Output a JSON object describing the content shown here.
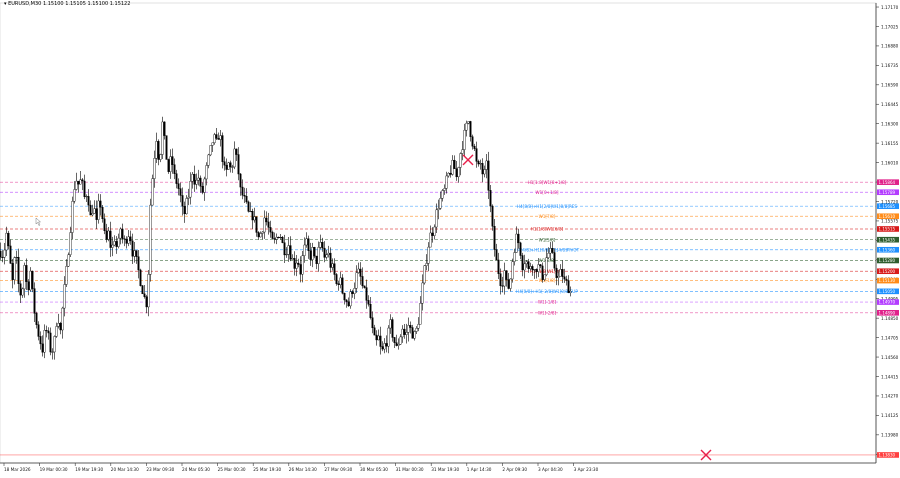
{
  "header": {
    "symbol_icon": "triangle-down-icon",
    "text": "EURUSD,M30  1.15100 1.15105 1.15100 1.15122"
  },
  "colors": {
    "background": "#ffffff",
    "candle": "#000000",
    "grid": "#d9d9d9",
    "axis": "#333333",
    "marker": "#e8204b",
    "price_line": "#ff4040"
  },
  "chart_data": {
    "type": "candlestick",
    "title": "",
    "xlabel": "",
    "ylabel": "",
    "ylim": [
      1.1377,
      1.172
    ],
    "grid": false,
    "y_ticks": [
      "1.17170",
      "1.17025",
      "1.16880",
      "1.16735",
      "1.16590",
      "1.16445",
      "1.16300",
      "1.16155",
      "1.16010",
      "1.15865",
      "1.15720",
      "1.15575",
      "1.15430",
      "1.15285",
      "1.15140",
      "1.14995",
      "1.14850",
      "1.14705",
      "1.14560",
      "1.14415",
      "1.14270",
      "1.14125",
      "1.13980",
      "1.13835"
    ],
    "x_ticks": [
      "18 Mar 2026",
      "19 Mar 00:30",
      "19 Mar 19:30",
      "20 Mar 14:30",
      "23 Mar 09:30",
      "24 Mar 05:30",
      "25 Mar 00:30",
      "25 Mar 19:30",
      "26 Mar 14:30",
      "27 Mar 09:30",
      "30 Mar 05:30",
      "31 Mar 00:30",
      "31 Mar 19:30",
      "1 Apr 14:30",
      "2 Apr 09:30",
      "3 Apr 04:30",
      "3 Apr 23:30"
    ],
    "price_path": [
      [
        0,
        1.1535
      ],
      [
        3,
        1.1532
      ],
      [
        6,
        1.1548
      ],
      [
        9,
        1.153
      ],
      [
        12,
        1.1512
      ],
      [
        15,
        1.1535
      ],
      [
        18,
        1.151
      ],
      [
        21,
        1.15
      ],
      [
        24,
        1.1525
      ],
      [
        27,
        1.1505
      ],
      [
        30,
        1.152
      ],
      [
        33,
        1.1495
      ],
      [
        36,
        1.148
      ],
      [
        39,
        1.147
      ],
      [
        42,
        1.1462
      ],
      [
        45,
        1.1478
      ],
      [
        48,
        1.147
      ],
      [
        51,
        1.1458
      ],
      [
        54,
        1.1468
      ],
      [
        57,
        1.149
      ],
      [
        60,
        1.1475
      ],
      [
        63,
        1.15
      ],
      [
        66,
        1.152
      ],
      [
        69,
        1.1545
      ],
      [
        72,
        1.157
      ],
      [
        75,
        1.159
      ],
      [
        78,
        1.1585
      ],
      [
        81,
        1.1588
      ],
      [
        84,
        1.1575
      ],
      [
        87,
        1.158
      ],
      [
        90,
        1.156
      ],
      [
        93,
        1.157
      ],
      [
        96,
        1.1555
      ],
      [
        99,
        1.1575
      ],
      [
        102,
        1.156
      ],
      [
        105,
        1.154
      ],
      [
        108,
        1.1548
      ],
      [
        111,
        1.1535
      ],
      [
        114,
        1.1545
      ],
      [
        117,
        1.1535
      ],
      [
        120,
        1.1552
      ],
      [
        123,
        1.154
      ],
      [
        126,
        1.1545
      ],
      [
        129,
        1.155
      ],
      [
        132,
        1.1535
      ],
      [
        135,
        1.153
      ],
      [
        138,
        1.152
      ],
      [
        141,
        1.151
      ],
      [
        144,
        1.15
      ],
      [
        147,
        1.1495
      ],
      [
        150,
        1.157
      ],
      [
        153,
        1.16
      ],
      [
        156,
        1.162
      ],
      [
        159,
        1.16
      ],
      [
        162,
        1.163
      ],
      [
        165,
        1.161
      ],
      [
        168,
        1.1595
      ],
      [
        171,
        1.1605
      ],
      [
        174,
        1.159
      ],
      [
        177,
        1.1585
      ],
      [
        180,
        1.1575
      ],
      [
        183,
        1.156
      ],
      [
        186,
        1.157
      ],
      [
        189,
        1.158
      ],
      [
        192,
        1.1595
      ],
      [
        195,
        1.1585
      ],
      [
        198,
        1.159
      ],
      [
        201,
        1.1575
      ],
      [
        204,
        1.1588
      ],
      [
        207,
        1.16
      ],
      [
        210,
        1.161
      ],
      [
        213,
        1.162
      ],
      [
        216,
        1.1615
      ],
      [
        219,
        1.1625
      ],
      [
        222,
        1.1605
      ],
      [
        225,
        1.159
      ],
      [
        228,
        1.16
      ],
      [
        231,
        1.1595
      ],
      [
        234,
        1.161
      ],
      [
        237,
        1.16
      ],
      [
        240,
        1.158
      ],
      [
        243,
        1.1575
      ],
      [
        246,
        1.1568
      ],
      [
        249,
        1.156
      ],
      [
        252,
        1.1562
      ],
      [
        255,
        1.1555
      ],
      [
        258,
        1.1545
      ],
      [
        261,
        1.155
      ],
      [
        264,
        1.156
      ],
      [
        267,
        1.1555
      ],
      [
        270,
        1.1545
      ],
      [
        273,
        1.154
      ],
      [
        276,
        1.1545
      ],
      [
        279,
        1.155
      ],
      [
        282,
        1.154
      ],
      [
        285,
        1.1535
      ],
      [
        288,
        1.154
      ],
      [
        291,
        1.153
      ],
      [
        294,
        1.1525
      ],
      [
        297,
        1.153
      ],
      [
        300,
        1.152
      ],
      [
        303,
        1.1535
      ],
      [
        306,
        1.154
      ],
      [
        309,
        1.153
      ],
      [
        312,
        1.1535
      ],
      [
        315,
        1.1525
      ],
      [
        318,
        1.1535
      ],
      [
        321,
        1.154
      ],
      [
        324,
        1.153
      ],
      [
        327,
        1.1535
      ],
      [
        330,
        1.1525
      ],
      [
        333,
        1.152
      ],
      [
        336,
        1.151
      ],
      [
        339,
        1.1515
      ],
      [
        342,
        1.1505
      ],
      [
        345,
        1.15
      ],
      [
        348,
        1.1495
      ],
      [
        351,
        1.1505
      ],
      [
        354,
        1.151
      ],
      [
        357,
        1.152
      ],
      [
        360,
        1.1515
      ],
      [
        363,
        1.1505
      ],
      [
        366,
        1.15
      ],
      [
        369,
        1.149
      ],
      [
        372,
        1.1475
      ],
      [
        375,
        1.1465
      ],
      [
        378,
        1.147
      ],
      [
        381,
        1.1458
      ],
      [
        384,
        1.1465
      ],
      [
        387,
        1.147
      ],
      [
        390,
        1.148
      ],
      [
        393,
        1.147
      ],
      [
        396,
        1.1462
      ],
      [
        399,
        1.147
      ],
      [
        402,
        1.1478
      ],
      [
        405,
        1.147
      ],
      [
        408,
        1.148
      ],
      [
        411,
        1.1475
      ],
      [
        414,
        1.1472
      ],
      [
        417,
        1.1478
      ],
      [
        420,
        1.1495
      ],
      [
        423,
        1.1515
      ],
      [
        426,
        1.153
      ],
      [
        429,
        1.1545
      ],
      [
        432,
        1.155
      ],
      [
        435,
        1.156
      ],
      [
        438,
        1.157
      ],
      [
        441,
        1.1575
      ],
      [
        444,
        1.158
      ],
      [
        447,
        1.159
      ],
      [
        450,
        1.1595
      ],
      [
        453,
        1.16
      ],
      [
        456,
        1.159
      ],
      [
        459,
        1.1605
      ],
      [
        462,
        1.1615
      ],
      [
        465,
        1.1625
      ],
      [
        468,
        1.1632
      ],
      [
        471,
        1.162
      ],
      [
        474,
        1.161
      ],
      [
        477,
        1.1595
      ],
      [
        480,
        1.16
      ],
      [
        483,
        1.159
      ],
      [
        486,
        1.1598
      ],
      [
        489,
        1.1575
      ],
      [
        492,
        1.155
      ],
      [
        495,
        1.153
      ],
      [
        498,
        1.152
      ],
      [
        501,
        1.151
      ],
      [
        504,
        1.152
      ],
      [
        507,
        1.1505
      ],
      [
        510,
        1.1515
      ],
      [
        513,
        1.1535
      ],
      [
        516,
        1.1545
      ],
      [
        519,
        1.154
      ],
      [
        522,
        1.1525
      ],
      [
        525,
        1.153
      ],
      [
        528,
        1.152
      ],
      [
        531,
        1.1528
      ],
      [
        534,
        1.152
      ],
      [
        537,
        1.1525
      ],
      [
        540,
        1.152
      ],
      [
        543,
        1.1515
      ],
      [
        546,
        1.153
      ],
      [
        549,
        1.1535
      ],
      [
        552,
        1.153
      ],
      [
        555,
        1.152
      ],
      [
        558,
        1.1515
      ],
      [
        561,
        1.152
      ],
      [
        564,
        1.1512
      ],
      [
        567,
        1.151
      ],
      [
        570,
        1.1505
      ]
    ],
    "levels": [
      {
        "label": "H1[1:8]W1[8+1/8]",
        "price": "1.15864",
        "color": "#e0218a",
        "label_color": "#e0218a",
        "line_style": "dash"
      },
      {
        "label": "W1[0+1/8]",
        "price": "1.15789",
        "color": "#b33cff",
        "label_color": "#e0218a",
        "line_style": "dash"
      },
      {
        "label": "H4[8/8]+H1[2/8]W1[8/8]RES",
        "price": "1.15685",
        "color": "#1e90ff",
        "label_color": "#1e90ff",
        "line_style": "dash"
      },
      {
        "label": "W1[7/8]",
        "price": "1.15610",
        "color": "#ff8c1a",
        "label_color": "#ff8c1a",
        "line_style": "dash"
      },
      {
        "label": "H1[1/8]W1[6/8]",
        "price": "1.15515",
        "color": "#d81b1b",
        "label_color": "#d81b1b",
        "line_style": "dash"
      },
      {
        "label": "W1[5/8]",
        "price": "1.15435",
        "color": "#2e5d2e",
        "label_color": "#2e5d2e",
        "line_style": "dash"
      },
      {
        "label": "H4[4/8]+H1[0/8]W1[4/8]PIVOT",
        "price": "1.15360",
        "color": "#1e90ff",
        "label_color": "#1e90ff",
        "line_style": "dash"
      },
      {
        "label": "W1[3/8]",
        "price": "1.15280",
        "color": "#2e5d2e",
        "label_color": "#2e5d2e",
        "line_style": "dash"
      },
      {
        "label": "H1[-1/8]W1[2/8]",
        "price": "1.15200",
        "color": "#d81b1b",
        "label_color": "#d81b1b",
        "line_style": "dash"
      },
      {
        "label": "W1[1/8]",
        "price": "1.15130",
        "color": "#ff8c1a",
        "label_color": "#ff8c1a",
        "line_style": "dash"
      },
      {
        "label": "H4[0/8]+H1[-2/8]W1[0/8]SUP",
        "price": "1.15050",
        "color": "#1e90ff",
        "label_color": "#1e90ff",
        "line_style": "dash"
      },
      {
        "label": "W1[-1/8]",
        "price": "1.14970",
        "color": "#b33cff",
        "label_color": "#e0218a",
        "line_style": "dash"
      },
      {
        "label": "W1[-2/8]",
        "price": "1.14890",
        "color": "#e0218a",
        "label_color": "#e0218a",
        "line_style": "dash"
      },
      {
        "label": "",
        "price": "1.13830",
        "color": "#ff4040",
        "label_color": "#ff4040",
        "line_style": "solid"
      }
    ],
    "markers": [
      {
        "name": "cross-marker",
        "x": 468,
        "y": 1.1603
      },
      {
        "name": "cross-marker",
        "x": 706,
        "y": 1.1383
      }
    ]
  }
}
